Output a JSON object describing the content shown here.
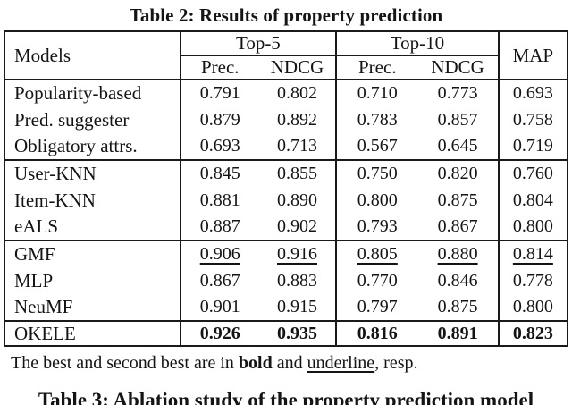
{
  "page": {
    "title": "Table 2: Results of property prediction",
    "next_table_caption": "Table 3: Ablation study of the property prediction model"
  },
  "table": {
    "headers": {
      "models": "Models",
      "top5": "Top-5",
      "top10": "Top-10",
      "map": "MAP",
      "prec": "Prec.",
      "ndcg": "NDCG"
    },
    "rows": [
      {
        "model": "Popularity-based",
        "values": [
          "0.791",
          "0.802",
          "0.710",
          "0.773",
          "0.693"
        ],
        "emphasis": "none"
      },
      {
        "model": "Pred. suggester",
        "values": [
          "0.879",
          "0.892",
          "0.783",
          "0.857",
          "0.758"
        ],
        "emphasis": "none"
      },
      {
        "model": "Obligatory attrs.",
        "values": [
          "0.693",
          "0.713",
          "0.567",
          "0.645",
          "0.719"
        ],
        "emphasis": "none"
      },
      {
        "model": "User-KNN",
        "values": [
          "0.845",
          "0.855",
          "0.750",
          "0.820",
          "0.760"
        ],
        "emphasis": "none"
      },
      {
        "model": "Item-KNN",
        "values": [
          "0.881",
          "0.890",
          "0.800",
          "0.875",
          "0.804"
        ],
        "emphasis": "none"
      },
      {
        "model": "eALS",
        "values": [
          "0.887",
          "0.902",
          "0.793",
          "0.867",
          "0.800"
        ],
        "emphasis": "none"
      },
      {
        "model": "GMF",
        "values": [
          "0.906",
          "0.916",
          "0.805",
          "0.880",
          "0.814"
        ],
        "emphasis": "underline"
      },
      {
        "model": "MLP",
        "values": [
          "0.867",
          "0.883",
          "0.770",
          "0.846",
          "0.778"
        ],
        "emphasis": "none"
      },
      {
        "model": "NeuMF",
        "values": [
          "0.901",
          "0.915",
          "0.797",
          "0.875",
          "0.800"
        ],
        "emphasis": "none"
      },
      {
        "model": "OKELE",
        "values": [
          "0.926",
          "0.935",
          "0.816",
          "0.891",
          "0.823"
        ],
        "emphasis": "bold"
      }
    ]
  },
  "footnote": {
    "prefix": "The best and second best are in ",
    "bold_word": "bold",
    "middle": " and ",
    "underline_word": "underline",
    "suffix": ", resp."
  },
  "colors": {
    "background": "#ffffff",
    "text": "#141414",
    "border": "#1a1a1a"
  }
}
